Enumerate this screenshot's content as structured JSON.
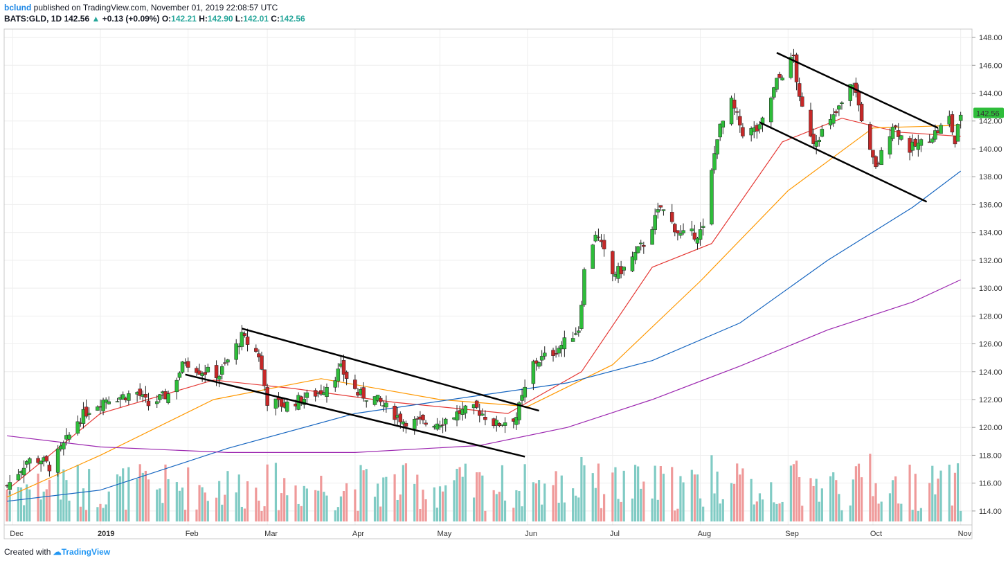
{
  "header": {
    "author": "bclund",
    "published": "published on TradingView.com, November 01, 2019 22:08:57 UTC",
    "symbol": "BATS:GLD, 1D",
    "last": "142.56",
    "arrow": "▲",
    "change": "+0.13 (+0.09%)",
    "o_label": "O:",
    "o": "142.21",
    "h_label": "H:",
    "h": "142.90",
    "l_label": "L:",
    "l": "142.01",
    "c_label": "C:",
    "c": "142.56"
  },
  "footer": {
    "created": "Created with",
    "brand": "TradingView"
  },
  "colors": {
    "up": "#2ebd3a",
    "down": "#c62828",
    "vol_up": "#80cbc4",
    "vol_down": "#ef9a9a",
    "ma20": "#e53935",
    "ma50": "#ff9800",
    "ma100": "#1565c0",
    "ma200": "#9c27b0",
    "price_tag": "#2ebd3a",
    "grid": "#eeeeee"
  },
  "chart_data": {
    "type": "candlestick",
    "symbol": "BATS:GLD",
    "interval": "1D",
    "ylim": [
      113,
      148.6
    ],
    "yticks": [
      "114.00",
      "116.00",
      "118.00",
      "120.00",
      "122.00",
      "124.00",
      "126.00",
      "128.00",
      "130.00",
      "132.00",
      "134.00",
      "136.00",
      "138.00",
      "140.00",
      "142.00",
      "144.00",
      "146.00",
      "148.00"
    ],
    "xlim": [
      "2018-11-28",
      "2019-11-05"
    ],
    "xticks": [
      {
        "label": "Dec",
        "date": "2018-12-01"
      },
      {
        "label": "2019",
        "date": "2019-01-01"
      },
      {
        "label": "Feb",
        "date": "2019-02-01"
      },
      {
        "label": "Mar",
        "date": "2019-03-01"
      },
      {
        "label": "Apr",
        "date": "2019-04-01"
      },
      {
        "label": "May",
        "date": "2019-05-01"
      },
      {
        "label": "Jun",
        "date": "2019-06-01"
      },
      {
        "label": "Jul",
        "date": "2019-07-01"
      },
      {
        "label": "Aug",
        "date": "2019-08-01"
      },
      {
        "label": "Sep",
        "date": "2019-09-01"
      },
      {
        "label": "Oct",
        "date": "2019-10-01"
      },
      {
        "label": "Nov",
        "date": "2019-11-01"
      }
    ],
    "last_price": "142.56",
    "series_close": [
      [
        "2018-11-29",
        115.8
      ],
      [
        "2018-12-03",
        116.8
      ],
      [
        "2018-12-06",
        117.6
      ],
      [
        "2018-12-11",
        117.7
      ],
      [
        "2018-12-14",
        117.2
      ],
      [
        "2018-12-19",
        118.7
      ],
      [
        "2018-12-24",
        120.5
      ],
      [
        "2018-12-28",
        121.3
      ],
      [
        "2019-01-03",
        122.1
      ],
      [
        "2019-01-08",
        122.2
      ],
      [
        "2019-01-14",
        122.5
      ],
      [
        "2019-01-18",
        121.6
      ],
      [
        "2019-01-25",
        122.4
      ],
      [
        "2019-01-31",
        124.8
      ],
      [
        "2019-02-05",
        124.1
      ],
      [
        "2019-02-12",
        123.8
      ],
      [
        "2019-02-20",
        126.5
      ],
      [
        "2019-02-26",
        125.2
      ],
      [
        "2019-03-01",
        121.9
      ],
      [
        "2019-03-07",
        121.6
      ],
      [
        "2019-03-14",
        122.1
      ],
      [
        "2019-03-20",
        122.6
      ],
      [
        "2019-03-27",
        124.2
      ],
      [
        "2019-04-02",
        122.4
      ],
      [
        "2019-04-08",
        122.1
      ],
      [
        "2019-04-12",
        121.4
      ],
      [
        "2019-04-18",
        120.5
      ],
      [
        "2019-04-25",
        120.3
      ],
      [
        "2019-05-01",
        120.4
      ],
      [
        "2019-05-08",
        121.1
      ],
      [
        "2019-05-14",
        121.3
      ],
      [
        "2019-05-21",
        120.2
      ],
      [
        "2019-05-28",
        120.8
      ],
      [
        "2019-06-03",
        124.6
      ],
      [
        "2019-06-10",
        125.4
      ],
      [
        "2019-06-14",
        126.1
      ],
      [
        "2019-06-19",
        127.1
      ],
      [
        "2019-06-21",
        131.2
      ],
      [
        "2019-06-25",
        134.0
      ],
      [
        "2019-07-01",
        131.0
      ],
      [
        "2019-07-05",
        131.4
      ],
      [
        "2019-07-12",
        133.2
      ],
      [
        "2019-07-18",
        135.8
      ],
      [
        "2019-07-25",
        133.8
      ],
      [
        "2019-07-31",
        133.9
      ],
      [
        "2019-08-02",
        134.2
      ],
      [
        "2019-08-07",
        141.0
      ],
      [
        "2019-08-12",
        143.3
      ],
      [
        "2019-08-16",
        141.2
      ],
      [
        "2019-08-22",
        141.4
      ],
      [
        "2019-08-28",
        144.8
      ],
      [
        "2019-09-03",
        146.6
      ],
      [
        "2019-09-05",
        143.4
      ],
      [
        "2019-09-10",
        140.6
      ],
      [
        "2019-09-16",
        141.9
      ],
      [
        "2019-09-20",
        143.2
      ],
      [
        "2019-09-24",
        144.8
      ],
      [
        "2019-09-30",
        139.7
      ],
      [
        "2019-10-02",
        138.5
      ],
      [
        "2019-10-08",
        141.8
      ],
      [
        "2019-10-14",
        140.0
      ],
      [
        "2019-10-18",
        140.4
      ],
      [
        "2019-10-24",
        141.3
      ],
      [
        "2019-10-28",
        142.2
      ],
      [
        "2019-10-30",
        140.4
      ],
      [
        "2019-11-01",
        142.56
      ]
    ],
    "moving_averages": [
      {
        "period": 20,
        "values": [
          [
            "2018-11-29",
            115.5
          ],
          [
            "2019-01-01",
            121.0
          ],
          [
            "2019-02-10",
            123.4
          ],
          [
            "2019-03-10",
            122.8
          ],
          [
            "2019-04-15",
            121.8
          ],
          [
            "2019-05-25",
            121.0
          ],
          [
            "2019-06-20",
            124.0
          ],
          [
            "2019-07-15",
            131.5
          ],
          [
            "2019-08-05",
            133.2
          ],
          [
            "2019-08-30",
            140.5
          ],
          [
            "2019-09-20",
            142.2
          ],
          [
            "2019-10-10",
            141.2
          ],
          [
            "2019-11-01",
            140.9
          ]
        ]
      },
      {
        "period": 50,
        "values": [
          [
            "2018-11-29",
            115.0
          ],
          [
            "2019-01-01",
            118.0
          ],
          [
            "2019-02-10",
            122.0
          ],
          [
            "2019-03-20",
            123.5
          ],
          [
            "2019-05-01",
            122.0
          ],
          [
            "2019-06-01",
            121.5
          ],
          [
            "2019-07-01",
            124.5
          ],
          [
            "2019-08-01",
            130.5
          ],
          [
            "2019-09-01",
            137.0
          ],
          [
            "2019-10-01",
            141.5
          ],
          [
            "2019-11-01",
            141.7
          ]
        ]
      },
      {
        "period": 100,
        "values": [
          [
            "2018-11-29",
            114.7
          ],
          [
            "2019-01-01",
            115.5
          ],
          [
            "2019-02-15",
            118.5
          ],
          [
            "2019-04-01",
            121.0
          ],
          [
            "2019-05-15",
            122.3
          ],
          [
            "2019-06-15",
            123.2
          ],
          [
            "2019-07-15",
            124.8
          ],
          [
            "2019-08-15",
            127.5
          ],
          [
            "2019-09-15",
            132.0
          ],
          [
            "2019-10-15",
            135.8
          ],
          [
            "2019-11-01",
            138.4
          ]
        ]
      },
      {
        "period": 200,
        "values": [
          [
            "2018-11-29",
            119.4
          ],
          [
            "2019-01-01",
            118.6
          ],
          [
            "2019-02-15",
            118.2
          ],
          [
            "2019-04-01",
            118.2
          ],
          [
            "2019-05-15",
            118.7
          ],
          [
            "2019-06-15",
            120.0
          ],
          [
            "2019-07-15",
            122.0
          ],
          [
            "2019-08-15",
            124.4
          ],
          [
            "2019-09-15",
            127.0
          ],
          [
            "2019-10-15",
            129.0
          ],
          [
            "2019-11-01",
            130.6
          ]
        ]
      }
    ],
    "trendlines": [
      {
        "from": [
          "2019-01-31",
          123.8
        ],
        "to": [
          "2019-05-31",
          117.9
        ]
      },
      {
        "from": [
          "2019-02-20",
          127.1
        ],
        "to": [
          "2019-06-05",
          121.2
        ]
      },
      {
        "from": [
          "2019-08-22",
          141.9
        ],
        "to": [
          "2019-10-20",
          136.2
        ]
      },
      {
        "from": [
          "2019-08-28",
          146.9
        ],
        "to": [
          "2019-10-24",
          141.5
        ]
      }
    ]
  }
}
